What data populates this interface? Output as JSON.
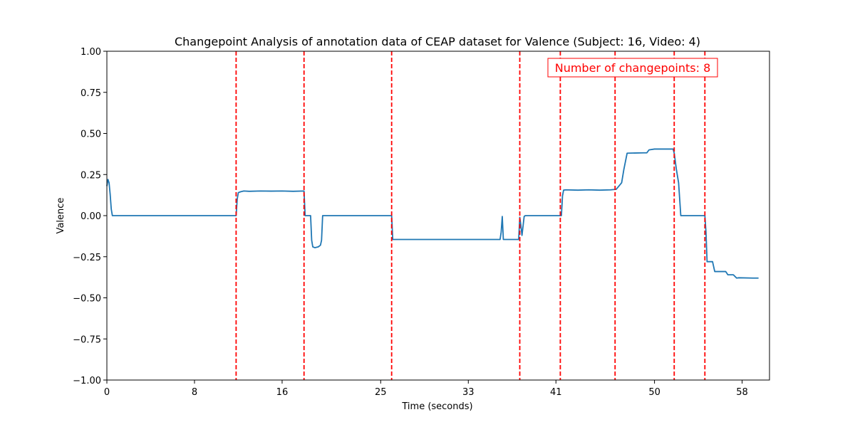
{
  "chart_data": {
    "type": "line",
    "title": "Changepoint Analysis of annotation data of CEAP dataset for Valence (Subject: 16, Video: 4)",
    "xlabel": "Time (seconds)",
    "ylabel": "Valence",
    "xlim": [
      0,
      60.5
    ],
    "ylim": [
      -1.0,
      1.0
    ],
    "x_ticks": [
      0,
      8,
      16,
      25,
      33,
      41,
      50,
      58
    ],
    "x_tick_labels": [
      "0",
      "8",
      "16",
      "25",
      "33",
      "41",
      "50",
      "58"
    ],
    "y_ticks": [
      -1.0,
      -0.75,
      -0.5,
      -0.25,
      0.0,
      0.25,
      0.5,
      0.75,
      1.0
    ],
    "y_tick_labels": [
      "−1.00",
      "−0.75",
      "−0.50",
      "−0.25",
      "0.00",
      "0.25",
      "0.50",
      "0.75",
      "1.00"
    ],
    "grid": false,
    "series": [
      {
        "color": "#1f77b4",
        "x": [
          0,
          0.1,
          0.2,
          0.3,
          0.4,
          0.5,
          11.8,
          11.9,
          12.0,
          12.2,
          12.5,
          13,
          14,
          15,
          16,
          17,
          18.0,
          18.1,
          18.6,
          18.7,
          18.8,
          19.0,
          19.3,
          19.5,
          19.6,
          19.7,
          20.0,
          26.0,
          26.1,
          30.0,
          35.0,
          35.9,
          36.0,
          36.1,
          36.2,
          37.6,
          37.7,
          37.8,
          37.9,
          38.1,
          38.2,
          41.5,
          41.6,
          41.7,
          41.9,
          43,
          44,
          45,
          46.0,
          46.5,
          47.0,
          47.2,
          47.5,
          49.0,
          49.3,
          49.5,
          50.0,
          51.0,
          51.7,
          51.8,
          52.0,
          52.2,
          52.4,
          54.6,
          54.7,
          54.8,
          55.2,
          55.3,
          55.5,
          56.5,
          56.7,
          57.2,
          57.5,
          57.7,
          59.0,
          59.5
        ],
        "y": [
          0.18,
          0.22,
          0.2,
          0.13,
          0.04,
          0.0,
          0.0,
          0.1,
          0.14,
          0.145,
          0.15,
          0.148,
          0.15,
          0.149,
          0.15,
          0.148,
          0.15,
          0.0,
          0.0,
          -0.15,
          -0.19,
          -0.195,
          -0.19,
          -0.18,
          -0.15,
          0.0,
          0.0,
          0.0,
          -0.145,
          -0.145,
          -0.145,
          -0.145,
          -0.1,
          -0.005,
          -0.145,
          -0.145,
          -0.01,
          -0.06,
          -0.12,
          -0.005,
          0.0,
          0.0,
          0.12,
          0.155,
          0.157,
          0.155,
          0.157,
          0.155,
          0.157,
          0.16,
          0.2,
          0.28,
          0.38,
          0.382,
          0.382,
          0.4,
          0.405,
          0.405,
          0.405,
          0.38,
          0.28,
          0.2,
          0.0,
          0.0,
          -0.1,
          -0.28,
          -0.28,
          -0.28,
          -0.34,
          -0.34,
          -0.36,
          -0.36,
          -0.38,
          -0.378,
          -0.38,
          -0.38
        ]
      }
    ],
    "changepoints": [
      11.8,
      18.0,
      26.0,
      37.7,
      41.4,
      46.4,
      51.8,
      54.6
    ],
    "changepoint_color": "#ff0000",
    "annotation": "Number of changepoints: 8",
    "annotation_position": "top-right"
  }
}
